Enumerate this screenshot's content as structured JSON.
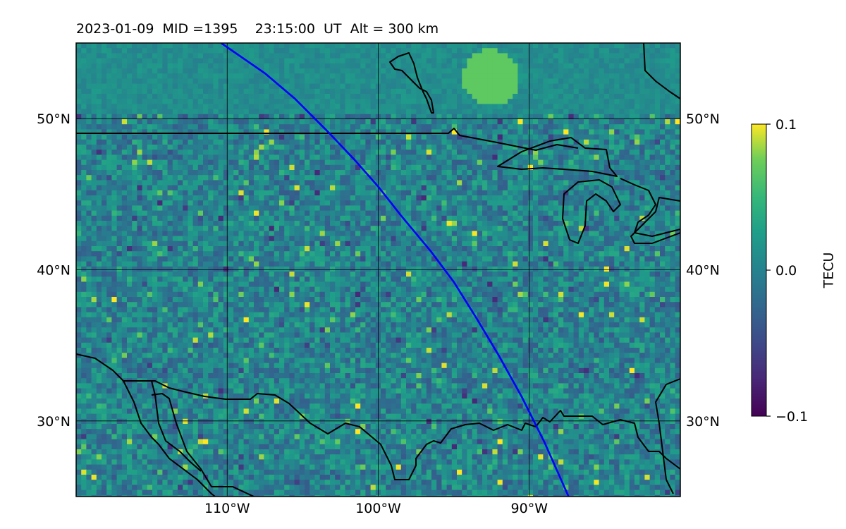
{
  "title": "2023-01-09  MID =1395    23:15:00  UT  Alt = 300 km",
  "map": {
    "lon_range": [
      -120,
      -80
    ],
    "lat_range": [
      25,
      55
    ],
    "gridlines": true,
    "x_ticks": [
      {
        "value": -110,
        "label": "110°W"
      },
      {
        "value": -100,
        "label": "100°W"
      },
      {
        "value": -90,
        "label": "90°W"
      }
    ],
    "y_ticks": [
      {
        "value": 50,
        "label": "50°N"
      },
      {
        "value": 40,
        "label": "40°N"
      },
      {
        "value": 30,
        "label": "30°N"
      }
    ],
    "track_color": "#0000ff",
    "track": [
      [
        -110.4,
        55
      ],
      [
        -107.5,
        53
      ],
      [
        -105.5,
        51.3
      ],
      [
        -103.2,
        49
      ],
      [
        -101.5,
        47.2
      ],
      [
        -100,
        45.5
      ],
      [
        -98.5,
        43.6
      ],
      [
        -96.5,
        41.2
      ],
      [
        -95,
        39.2
      ],
      [
        -93.5,
        36.8
      ],
      [
        -92,
        34.3
      ],
      [
        -90.5,
        31.6
      ],
      [
        -89,
        28.6
      ],
      [
        -87.4,
        25
      ]
    ],
    "heatmap_colormap": "viridis",
    "heatmap_range": [
      -0.1,
      0.1
    ]
  },
  "colorbar": {
    "label": "TECU",
    "ticks": [
      {
        "value": 0.1,
        "label": "0.1"
      },
      {
        "value": 0.0,
        "label": "0.0"
      },
      {
        "value": -0.1,
        "label": "−0.1"
      }
    ]
  }
}
